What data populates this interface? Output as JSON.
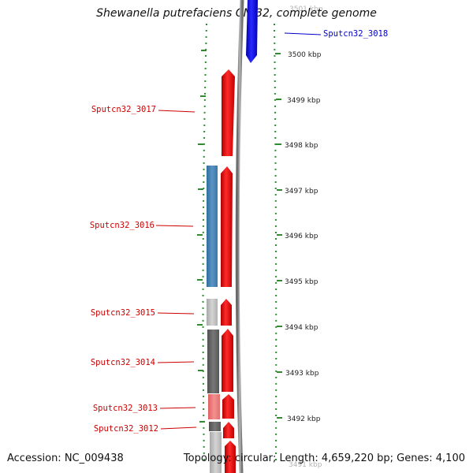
{
  "title": "Shewanella putrefaciens CN-32, complete genome",
  "accession": "Accession: NC_009438",
  "summary": "Topology: circular; Length: 4,659,220 bp; Genes: 4,100",
  "colors": {
    "forward_gene": "#ff0000",
    "reverse_gene": "#0000ff",
    "label_forward": "#cc0000",
    "label_reverse": "#0000cc",
    "scale_dots": "#2e8b2e",
    "backbone": "#808080"
  },
  "ticks": [
    {
      "label": "3501 kbp",
      "faded": true
    },
    {
      "label": "3500 kbp"
    },
    {
      "label": "3499 kbp"
    },
    {
      "label": "3498 kbp"
    },
    {
      "label": "3497 kbp"
    },
    {
      "label": "3496 kbp"
    },
    {
      "label": "3495 kbp"
    },
    {
      "label": "3494 kbp"
    },
    {
      "label": "3493 kbp"
    },
    {
      "label": "3492 kbp"
    },
    {
      "label": "3491 kbp",
      "faded": true
    }
  ],
  "genes": [
    {
      "name": "Sputcn32_3018",
      "strand": "reverse"
    },
    {
      "name": "Sputcn32_3017",
      "strand": "forward"
    },
    {
      "name": "Sputcn32_3016",
      "strand": "forward"
    },
    {
      "name": "Sputcn32_3015",
      "strand": "forward"
    },
    {
      "name": "Sputcn32_3014",
      "strand": "forward"
    },
    {
      "name": "Sputcn32_3013",
      "strand": "forward"
    },
    {
      "name": "Sputcn32_3012",
      "strand": "forward"
    }
  ]
}
